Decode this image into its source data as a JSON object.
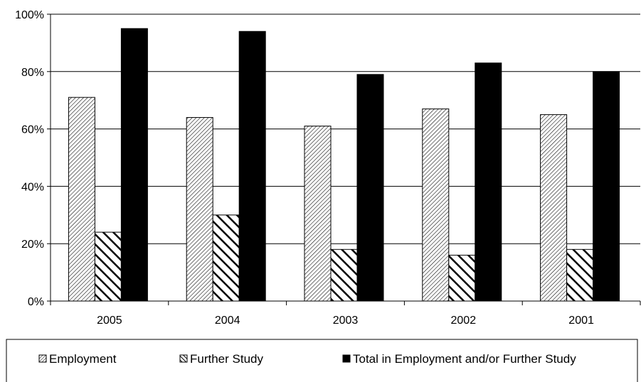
{
  "chart_data": {
    "type": "bar",
    "title": "",
    "xlabel": "",
    "ylabel": "",
    "categories": [
      "2005",
      "2004",
      "2003",
      "2002",
      "2001"
    ],
    "ylim": [
      0,
      100
    ],
    "yticks": [
      "0%",
      "20%",
      "40%",
      "60%",
      "80%",
      "100%"
    ],
    "grid": true,
    "legend_position": "bottom",
    "series": [
      {
        "name": "Employment",
        "values": [
          71,
          64,
          61,
          67,
          65
        ],
        "pattern": "light-diagonal-hatch",
        "color": "#000000"
      },
      {
        "name": "Further Study",
        "values": [
          24,
          30,
          18,
          16,
          18
        ],
        "pattern": "heavy-diagonal-hatch",
        "color": "#000000"
      },
      {
        "name": "Total in Employment and/or Further Study",
        "values": [
          95,
          94,
          79,
          83,
          80
        ],
        "pattern": "solid",
        "color": "#000000"
      }
    ]
  }
}
